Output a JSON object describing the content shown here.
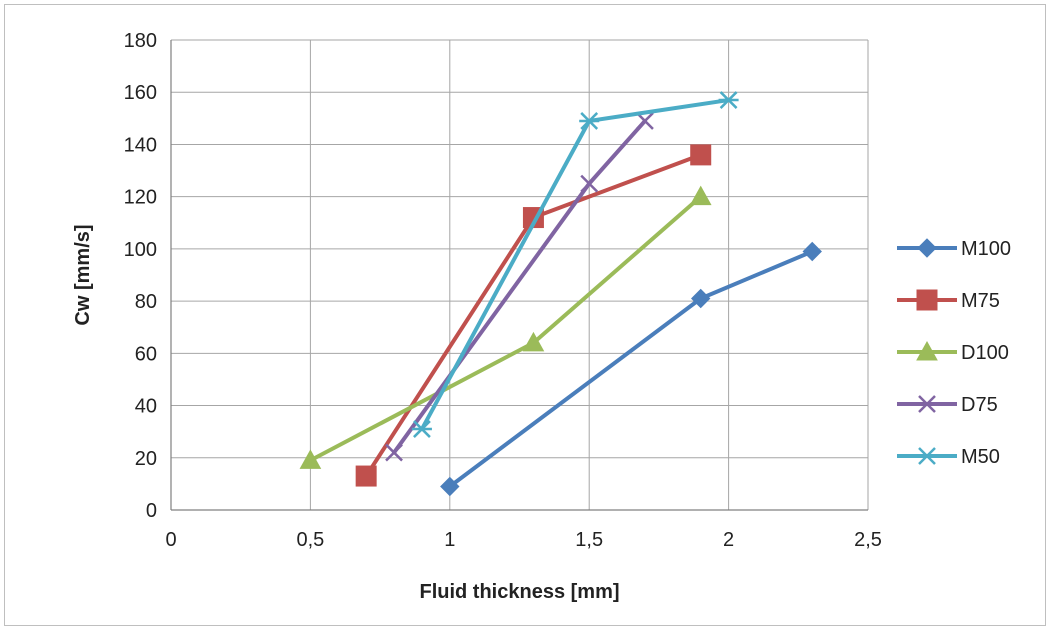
{
  "chart_data": {
    "type": "line",
    "title": "",
    "xlabel": "Fluid thickness [mm]",
    "ylabel": "Cw [mm/s]",
    "xlim": [
      0,
      2.5
    ],
    "ylim": [
      0,
      180
    ],
    "xticks": [
      0,
      0.5,
      1,
      1.5,
      2,
      2.5
    ],
    "xtick_labels": [
      "0",
      "0,5",
      "1",
      "1,5",
      "2",
      "2,5"
    ],
    "yticks": [
      0,
      20,
      40,
      60,
      80,
      100,
      120,
      140,
      160,
      180
    ],
    "ytick_labels": [
      "0",
      "20",
      "40",
      "60",
      "80",
      "100",
      "120",
      "140",
      "160",
      "180"
    ],
    "grid": true,
    "legend_position": "right",
    "series": [
      {
        "name": "M100",
        "color": "#4a7ebb",
        "marker": "diamond",
        "x": [
          1.0,
          1.9,
          2.3
        ],
        "y": [
          9,
          81,
          99
        ]
      },
      {
        "name": "M75",
        "color": "#c0504d",
        "marker": "square",
        "x": [
          0.7,
          1.3,
          1.9
        ],
        "y": [
          13,
          112,
          136
        ]
      },
      {
        "name": "D100",
        "color": "#9bbb59",
        "marker": "triangle",
        "x": [
          0.5,
          1.3,
          1.9
        ],
        "y": [
          19,
          64,
          120
        ]
      },
      {
        "name": "D75",
        "color": "#8064a2",
        "marker": "x",
        "x": [
          0.8,
          1.5,
          1.7
        ],
        "y": [
          22,
          125,
          149
        ]
      },
      {
        "name": "M50",
        "color": "#4bacc6",
        "marker": "star",
        "x": [
          0.9,
          1.5,
          2.0
        ],
        "y": [
          31,
          149,
          157
        ]
      }
    ]
  }
}
